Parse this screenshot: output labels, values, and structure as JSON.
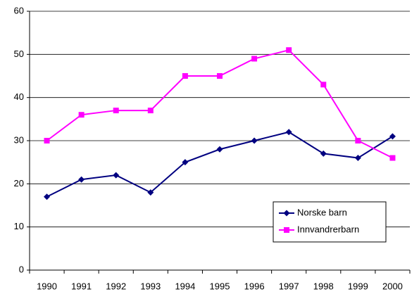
{
  "chart_data": {
    "type": "line",
    "categories": [
      "1990",
      "1991",
      "1992",
      "1993",
      "1994",
      "1995",
      "1996",
      "1997",
      "1998",
      "1999",
      "2000"
    ],
    "series": [
      {
        "name": "Norske barn",
        "color": "#000080",
        "marker": "diamond",
        "values": [
          17,
          21,
          22,
          18,
          25,
          28,
          30,
          32,
          27,
          26,
          31
        ]
      },
      {
        "name": "Innvandrerbarn",
        "color": "#ff00ff",
        "marker": "square",
        "values": [
          30,
          36,
          37,
          37,
          45,
          45,
          49,
          51,
          43,
          30,
          26
        ]
      }
    ],
    "ylim": [
      0,
      60
    ],
    "yticks": [
      0,
      10,
      20,
      30,
      40,
      50,
      60
    ],
    "grid": true,
    "legend": "lower-right"
  }
}
